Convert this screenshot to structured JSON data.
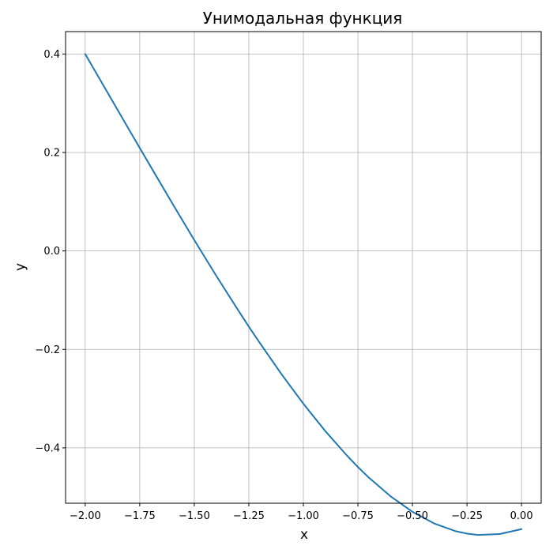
{
  "chart_data": {
    "type": "line",
    "title": "Унимодальная функция",
    "xlabel": "x",
    "ylabel": "y",
    "xlim": [
      -2.09,
      0.09
    ],
    "ylim": [
      -0.5125,
      0.4455
    ],
    "grid": true,
    "x_ticks": [
      -2.0,
      -1.75,
      -1.5,
      -1.25,
      -1.0,
      -0.75,
      -0.5,
      -0.25,
      0.0
    ],
    "x_tick_labels": [
      "−2.00",
      "−1.75",
      "−1.50",
      "−1.25",
      "−1.00",
      "−0.75",
      "−0.50",
      "−0.25",
      "0.00"
    ],
    "y_ticks": [
      -0.4,
      -0.2,
      0.0,
      0.2,
      0.4
    ],
    "y_tick_labels": [
      "−0.4",
      "−0.2",
      "0.0",
      "0.2",
      "0.4"
    ],
    "colors": {
      "line": "#1f77b4",
      "grid": "#b0b0b0",
      "axes": "#000000"
    },
    "series": [
      {
        "x": [
          -2.0,
          -1.9,
          -1.8,
          -1.75,
          -1.7,
          -1.6,
          -1.5,
          -1.4,
          -1.3,
          -1.25,
          -1.2,
          -1.1,
          -1.0,
          -0.9,
          -0.8,
          -0.75,
          -0.7,
          -0.6,
          -0.5,
          -0.4,
          -0.3,
          -0.25,
          -0.2,
          -0.1,
          0.0
        ],
        "y": [
          0.4,
          0.3235,
          0.2472,
          0.2092,
          0.1714,
          0.0961,
          0.0221,
          -0.05,
          -0.1197,
          -0.1538,
          -0.1867,
          -0.2504,
          -0.3103,
          -0.3656,
          -0.4158,
          -0.4389,
          -0.4603,
          -0.4985,
          -0.5299,
          -0.5537,
          -0.5695,
          -0.5742,
          -0.5769,
          -0.5751,
          -0.565
        ]
      }
    ]
  }
}
